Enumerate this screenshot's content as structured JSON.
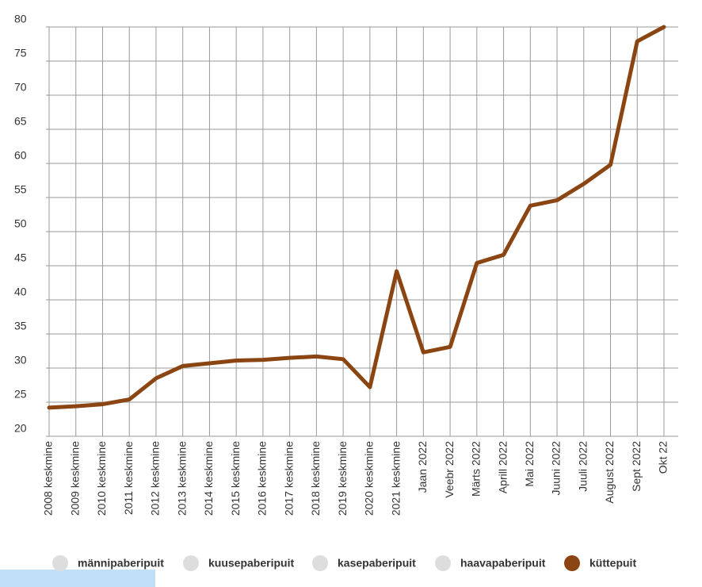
{
  "chart_data": {
    "type": "line",
    "categories": [
      "2008 keskmine",
      "2009 keskmine",
      "2010 keskmine",
      "2011 keskmine",
      "2012 keskmine",
      "2013 keskmine",
      "2014 keskmine",
      "2015 keskmine",
      "2016 keskmine",
      "2017 keskmine",
      "2018 keskmine",
      "2019 keskmine",
      "2020 keskmine",
      "2021 keskmine",
      "Jaan 2022",
      "Veebr 2022",
      "Märts 2022",
      "Aprill 2022",
      "Mai 2022",
      "Juuni 2022",
      "Juuli 2022",
      "August 2022",
      "Sept 2022",
      "Okt 22"
    ],
    "series": [
      {
        "name": "männipaberipuit",
        "color": "#dddddd",
        "visible": false,
        "values": [
          null,
          null,
          null,
          null,
          null,
          null,
          null,
          null,
          null,
          null,
          null,
          null,
          null,
          null,
          null,
          null,
          null,
          null,
          null,
          null,
          null,
          null,
          null,
          null
        ]
      },
      {
        "name": "kuusepaberipuit",
        "color": "#dddddd",
        "visible": false,
        "values": [
          null,
          null,
          null,
          null,
          null,
          null,
          null,
          null,
          null,
          null,
          null,
          null,
          null,
          null,
          null,
          null,
          null,
          null,
          null,
          null,
          null,
          null,
          null,
          null
        ]
      },
      {
        "name": "kasepaberipuit",
        "color": "#dddddd",
        "visible": false,
        "values": [
          null,
          null,
          null,
          null,
          null,
          null,
          null,
          null,
          null,
          null,
          null,
          null,
          null,
          null,
          null,
          null,
          null,
          null,
          null,
          null,
          null,
          null,
          null,
          null
        ]
      },
      {
        "name": "haavapaberipuit",
        "color": "#dddddd",
        "visible": false,
        "values": [
          null,
          null,
          null,
          null,
          null,
          null,
          null,
          null,
          null,
          null,
          null,
          null,
          null,
          null,
          null,
          null,
          null,
          null,
          null,
          null,
          null,
          null,
          null,
          null
        ]
      },
      {
        "name": "küttepuit",
        "color": "#8b4513",
        "visible": true,
        "values": [
          24.2,
          24.4,
          24.7,
          25.4,
          28.5,
          30.3,
          30.7,
          31.1,
          31.2,
          31.5,
          31.7,
          31.3,
          27.2,
          44.2,
          32.3,
          33.1,
          45.4,
          46.6,
          53.8,
          54.6,
          57.0,
          59.8,
          77.9,
          80.0
        ]
      }
    ],
    "ylim": [
      20,
      80
    ],
    "yticks": [
      20,
      25,
      30,
      35,
      40,
      45,
      50,
      55,
      60,
      65,
      70,
      75,
      80
    ],
    "grid": true,
    "legend": "bottom"
  }
}
